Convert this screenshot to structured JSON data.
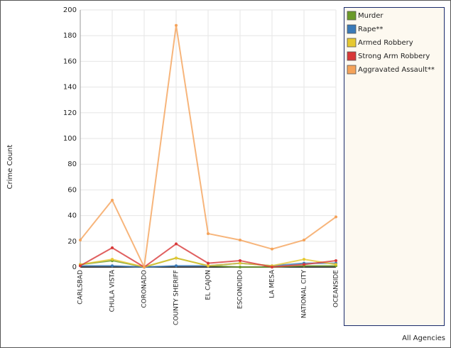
{
  "chart_data": {
    "type": "line",
    "y_label": "Crime Count",
    "x_label": "All Agencies",
    "categories": [
      "CARLSBAD",
      "CHULA VISTA",
      "CORONADO",
      "COUNTY SHERIFF",
      "EL CAJON",
      "ESCONDIDO",
      "LA MESA",
      "NATIONAL CITY",
      "OCEANSIDE"
    ],
    "series": [
      {
        "name": "Murder",
        "color": "#6a9a2a",
        "values": [
          2,
          5,
          0,
          7,
          1,
          0,
          0,
          1,
          1
        ]
      },
      {
        "name": "Rape**",
        "color": "#3a7ab8",
        "values": [
          1,
          1,
          0,
          1,
          1,
          3,
          1,
          3,
          3
        ]
      },
      {
        "name": "Armed Robbery",
        "color": "#e6c830",
        "values": [
          2,
          6,
          0,
          7,
          1,
          3,
          1,
          6,
          2
        ]
      },
      {
        "name": "Strong Arm Robbery",
        "color": "#d83838",
        "values": [
          1,
          15,
          0,
          18,
          3,
          5,
          0,
          2,
          5
        ]
      },
      {
        "name": "Aggravated Assault**",
        "color": "#f5a35a",
        "values": [
          21,
          52,
          0,
          188,
          26,
          21,
          14,
          21,
          39
        ]
      }
    ],
    "ylim": [
      0,
      200
    ],
    "yticks": [
      0,
      20,
      40,
      60,
      80,
      100,
      120,
      140,
      160,
      180,
      200
    ],
    "grid": true,
    "legend": "right"
  }
}
